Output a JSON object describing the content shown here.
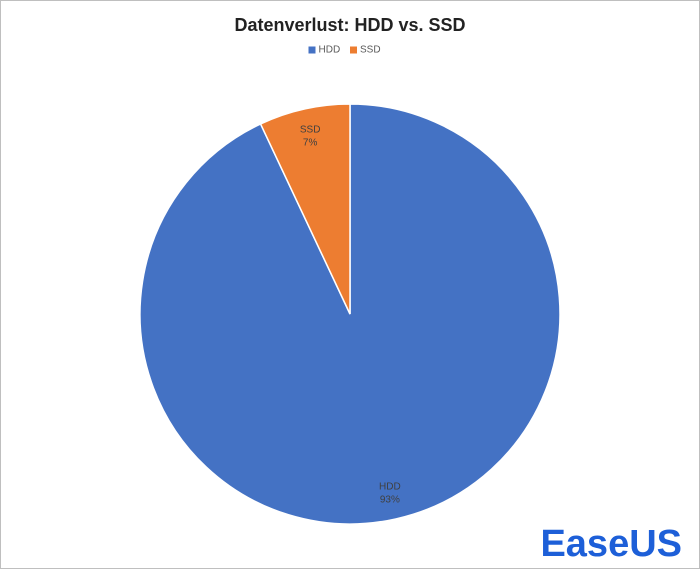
{
  "chart_data": {
    "type": "pie",
    "title": "Datenverlust: HDD vs. SSD",
    "categories": [
      "HDD",
      "SSD"
    ],
    "values": [
      93,
      7
    ],
    "value_labels": [
      "93%",
      "7%"
    ],
    "colors": [
      "#4472c4",
      "#ed7d31"
    ],
    "legend": "top"
  },
  "logo": "EaseUS"
}
